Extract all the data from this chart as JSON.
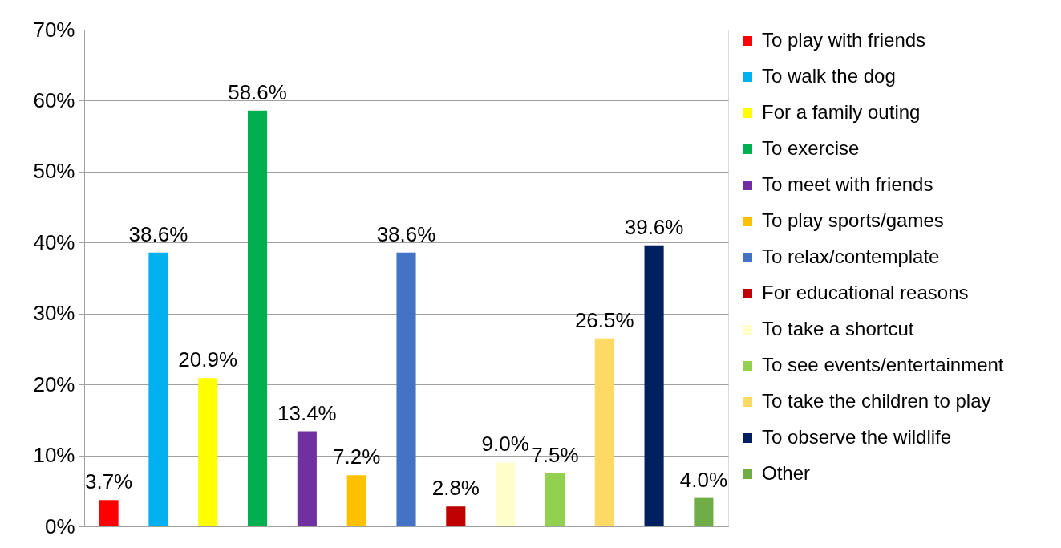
{
  "chart_data": {
    "type": "bar",
    "categories": [
      null
    ],
    "series": [
      {
        "name": "To play with friends",
        "color": "#ff0000",
        "values": [
          3.7
        ],
        "value_labels": [
          "3.7%"
        ]
      },
      {
        "name": "To walk the dog",
        "color": "#00b0f0",
        "values": [
          38.6
        ],
        "value_labels": [
          "38.6%"
        ]
      },
      {
        "name": "For a family outing",
        "color": "#ffff00",
        "values": [
          20.9
        ],
        "value_labels": [
          "20.9%"
        ]
      },
      {
        "name": "To exercise",
        "color": "#00b050",
        "values": [
          58.6
        ],
        "value_labels": [
          "58.6%"
        ]
      },
      {
        "name": "To meet with friends",
        "color": "#7030a0",
        "values": [
          13.4
        ],
        "value_labels": [
          "13.4%"
        ]
      },
      {
        "name": "To play sports/games",
        "color": "#ffc000",
        "values": [
          7.2
        ],
        "value_labels": [
          "7.2%"
        ]
      },
      {
        "name": "To relax/contemplate",
        "color": "#4472c4",
        "values": [
          38.6
        ],
        "value_labels": [
          "38.6%"
        ]
      },
      {
        "name": "For educational reasons",
        "color": "#c00000",
        "values": [
          2.8
        ],
        "value_labels": [
          "2.8%"
        ]
      },
      {
        "name": "To take a shortcut",
        "color": "#ffffcc",
        "values": [
          9.0
        ],
        "value_labels": [
          "9.0%"
        ]
      },
      {
        "name": "To see events/entertainment",
        "color": "#92d050",
        "values": [
          7.5
        ],
        "value_labels": [
          "7.5%"
        ]
      },
      {
        "name": "To take the children to play",
        "color": "#ffd966",
        "values": [
          26.5
        ],
        "value_labels": [
          "26.5%"
        ]
      },
      {
        "name": "To observe the wildlife",
        "color": "#002060",
        "values": [
          39.6
        ],
        "value_labels": [
          "39.6%"
        ]
      },
      {
        "name": "Other",
        "color": "#70ad47",
        "values": [
          4.0
        ],
        "value_labels": [
          "4.0%"
        ]
      }
    ],
    "ylim": [
      0,
      70
    ],
    "yticks": [
      {
        "value": 0,
        "label": "0%"
      },
      {
        "value": 10,
        "label": "10%"
      },
      {
        "value": 20,
        "label": "20%"
      },
      {
        "value": 30,
        "label": "30%"
      },
      {
        "value": 40,
        "label": "40%"
      },
      {
        "value": 50,
        "label": "50%"
      },
      {
        "value": 60,
        "label": "60%"
      },
      {
        "value": 70,
        "label": "70%"
      }
    ],
    "grid": "y",
    "legend": "right",
    "tick_labels": "y"
  }
}
